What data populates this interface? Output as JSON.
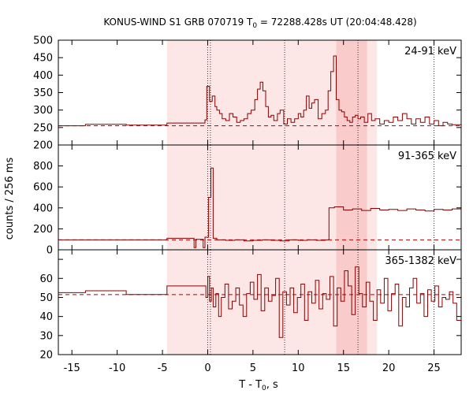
{
  "chart_data": {
    "type": "line",
    "title": {
      "prefix": "KONUS-WIND S1 GRB 070719 T",
      "sub": "0",
      "suffix": " = 72288.428s UT (20:04:48.428)"
    },
    "xlabel": {
      "prefix": "T - T",
      "sub": "0",
      "suffix": ", s"
    },
    "ylabel": "counts / 256 ms",
    "xlim": [
      -16.5,
      28
    ],
    "x_ticks": [
      -15,
      -10,
      -5,
      0,
      5,
      10,
      15,
      20,
      25
    ],
    "x_tick_labels": [
      "-15",
      "-10",
      "-5",
      "0",
      "5",
      "10",
      "15",
      "20",
      "25"
    ],
    "shaded_intervals": [
      {
        "range": [
          -4.5,
          18.7
        ],
        "shade": "light"
      },
      {
        "range": [
          14.2,
          17.6
        ],
        "shade": "dark"
      }
    ],
    "vertical_lines": [
      0.0,
      0.3,
      8.5,
      16.6,
      25.0
    ],
    "colors": {
      "series": "#8b0000",
      "background_line": "#b00000",
      "shade_light": "#fde6e6",
      "shade_dark": "#f9cbcb"
    },
    "panels": [
      {
        "band": "24-91 keV",
        "ylim": [
          200,
          500
        ],
        "y_ticks": [
          200,
          250,
          300,
          350,
          400,
          450,
          500
        ],
        "y_tick_labels": [
          "200",
          "250",
          "300",
          "350",
          "400",
          "450",
          "500"
        ],
        "background": 255,
        "series": {
          "x": [
            -16.5,
            -13.5,
            -9.0,
            -4.5,
            -0.3,
            -0.1,
            0.2,
            0.5,
            0.8,
            1.0,
            1.3,
            1.6,
            2.0,
            2.4,
            2.8,
            3.2,
            3.6,
            4.0,
            4.4,
            4.8,
            5.2,
            5.5,
            5.8,
            6.1,
            6.4,
            6.7,
            7.0,
            7.3,
            7.7,
            8.0,
            8.4,
            8.8,
            9.2,
            9.6,
            10.0,
            10.3,
            10.6,
            10.9,
            11.2,
            11.5,
            11.8,
            12.2,
            12.6,
            13.0,
            13.3,
            13.6,
            13.9,
            14.2,
            14.5,
            14.8,
            15.1,
            15.4,
            15.7,
            16.0,
            16.3,
            16.6,
            16.9,
            17.3,
            17.7,
            18.1,
            18.5,
            19.0,
            19.5,
            20.0,
            20.5,
            21.0,
            21.5,
            22.0,
            22.5,
            23.0,
            23.5,
            24.0,
            24.5,
            25.0,
            25.5,
            26.0,
            26.5,
            27.0,
            27.5
          ],
          "y": [
            255,
            259,
            257,
            263,
            272,
            368,
            325,
            340,
            310,
            300,
            290,
            275,
            270,
            290,
            280,
            265,
            270,
            275,
            290,
            300,
            330,
            360,
            380,
            355,
            310,
            280,
            285,
            270,
            290,
            300,
            260,
            275,
            265,
            275,
            290,
            280,
            300,
            340,
            305,
            320,
            330,
            275,
            290,
            300,
            355,
            410,
            455,
            330,
            300,
            295,
            280,
            270,
            265,
            280,
            285,
            275,
            280,
            265,
            290,
            270,
            275,
            260,
            270,
            265,
            280,
            270,
            290,
            275,
            260,
            275,
            265,
            280,
            260,
            270,
            255,
            265,
            260,
            258,
            258
          ]
        }
      },
      {
        "band": "91-365 keV",
        "ylim": [
          0,
          1000
        ],
        "y_ticks": [
          0,
          200,
          400,
          600,
          800,
          1000
        ],
        "y_tick_labels": [
          "0",
          "200",
          "400",
          "600",
          "800",
          "1000"
        ],
        "background": 95,
        "series": {
          "x": [
            -16.5,
            -4.5,
            -1.5,
            -1.3,
            -0.5,
            -0.3,
            0.1,
            0.35,
            0.6,
            1.0,
            2.0,
            3.0,
            4.0,
            5.0,
            6.0,
            7.0,
            8.0,
            9.0,
            10.0,
            11.0,
            12.0,
            13.0,
            13.4,
            14.0,
            15.0,
            16.0,
            17.0,
            18.0,
            19.0,
            20.0,
            21.0,
            22.0,
            23.0,
            24.0,
            25.0,
            26.0,
            27.0
          ],
          "y": [
            95,
            110,
            20,
            100,
            20,
            120,
            500,
            780,
            110,
            95,
            90,
            95,
            85,
            90,
            95,
            90,
            85,
            95,
            90,
            95,
            90,
            95,
            400,
            410,
            380,
            390,
            375,
            395,
            380,
            385,
            375,
            390,
            380,
            370,
            385,
            380,
            390
          ]
        }
      },
      {
        "band": "365-1382 keV",
        "ylim": [
          20,
          75
        ],
        "y_ticks": [
          20,
          30,
          40,
          50,
          60,
          70
        ],
        "y_tick_labels": [
          "20",
          "30",
          "40",
          "50",
          "60",
          "70"
        ],
        "background": 51.5,
        "series": {
          "x": [
            -16.5,
            -13.5,
            -9.0,
            -4.5,
            -0.2,
            0.0,
            0.2,
            0.4,
            0.6,
            0.9,
            1.2,
            1.5,
            1.9,
            2.3,
            2.7,
            3.1,
            3.5,
            3.9,
            4.3,
            4.7,
            5.1,
            5.5,
            5.9,
            6.3,
            6.7,
            7.1,
            7.5,
            7.9,
            8.3,
            8.7,
            9.1,
            9.5,
            9.9,
            10.3,
            10.7,
            11.1,
            11.5,
            11.9,
            12.3,
            12.7,
            13.1,
            13.5,
            13.9,
            14.3,
            14.7,
            15.1,
            15.5,
            15.9,
            16.3,
            16.7,
            17.1,
            17.5,
            17.9,
            18.3,
            18.7,
            19.1,
            19.5,
            19.9,
            20.3,
            20.7,
            21.1,
            21.5,
            21.9,
            22.3,
            22.7,
            23.1,
            23.5,
            23.9,
            24.3,
            24.7,
            25.1,
            25.5,
            25.9,
            26.3,
            26.7,
            27.1,
            27.5
          ],
          "y": [
            52.5,
            53.5,
            51.5,
            56,
            50,
            61,
            48,
            55,
            45,
            52,
            40,
            50,
            57,
            44,
            48,
            55,
            46,
            40,
            52,
            58,
            49,
            62,
            43,
            55,
            48,
            51,
            60,
            29,
            53,
            46,
            55,
            42,
            50,
            57,
            38,
            53,
            47,
            59,
            44,
            52,
            49,
            61,
            35,
            55,
            48,
            64,
            56,
            41,
            66,
            52,
            45,
            58,
            48,
            38,
            54,
            47,
            60,
            43,
            52,
            57,
            35,
            50,
            45,
            55,
            60,
            47,
            52,
            40,
            54,
            48,
            56,
            45,
            50,
            49,
            53,
            47,
            38
          ]
        }
      }
    ]
  }
}
